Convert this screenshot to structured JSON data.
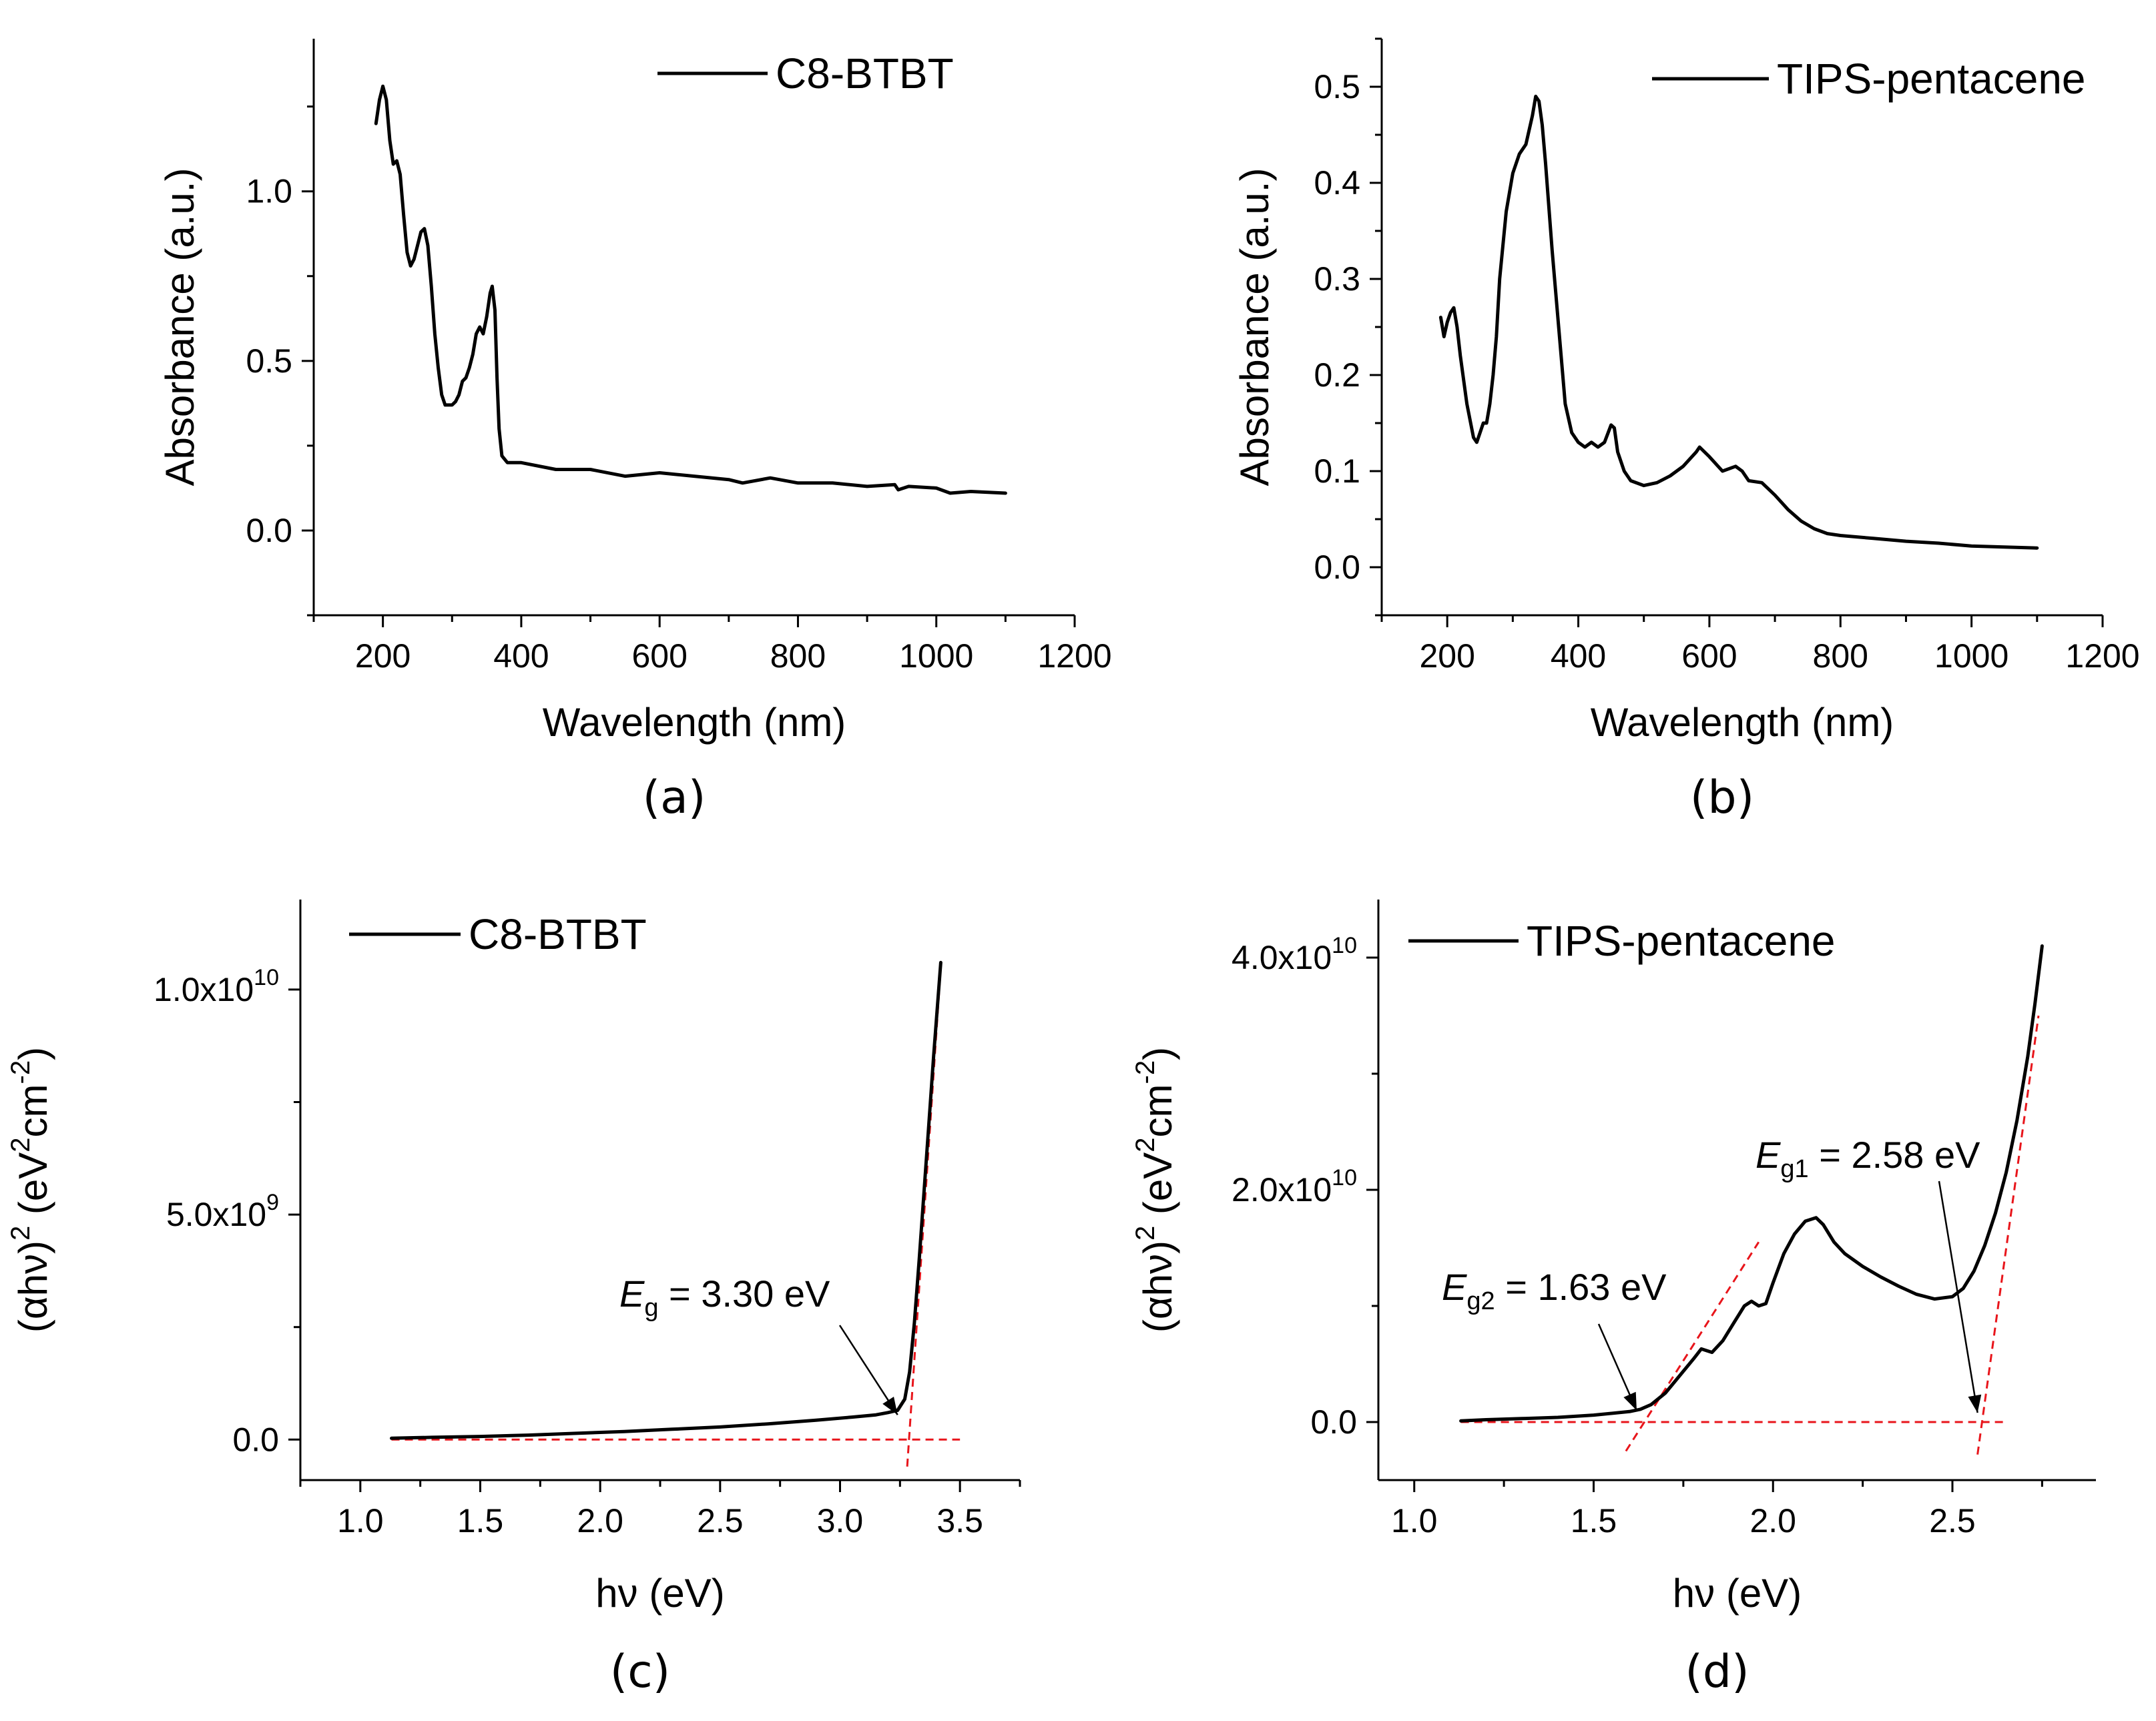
{
  "chart_data": [
    {
      "id": "a",
      "type": "line",
      "caption": "(a)",
      "xlabel": "Wavelength (nm)",
      "ylabel": "Absorbance (a.u.)",
      "xlim": [
        100,
        1200
      ],
      "ylim": [
        -0.25,
        1.45
      ],
      "xticks": [
        200,
        400,
        600,
        800,
        1000,
        1200
      ],
      "xtick_labels": [
        "200",
        "400",
        "600",
        "800",
        "1000",
        "1200"
      ],
      "yticks": [
        0.0,
        0.5,
        1.0
      ],
      "ytick_labels": [
        "0.0",
        "0.5",
        "1.0"
      ],
      "legend": {
        "label": "C8-BTBT",
        "position": "top-right"
      },
      "series": [
        {
          "name": "C8-BTBT",
          "color": "#000000",
          "x": [
            190,
            195,
            200,
            205,
            210,
            215,
            220,
            225,
            230,
            235,
            240,
            245,
            250,
            255,
            260,
            265,
            270,
            275,
            280,
            285,
            290,
            295,
            300,
            305,
            310,
            315,
            320,
            325,
            330,
            335,
            340,
            345,
            350,
            355,
            358,
            362,
            365,
            368,
            372,
            376,
            380,
            400,
            450,
            500,
            550,
            600,
            650,
            700,
            720,
            760,
            800,
            850,
            900,
            940,
            945,
            960,
            1000,
            1020,
            1050,
            1100
          ],
          "y": [
            1.2,
            1.27,
            1.31,
            1.27,
            1.15,
            1.08,
            1.09,
            1.05,
            0.93,
            0.82,
            0.78,
            0.8,
            0.84,
            0.88,
            0.89,
            0.84,
            0.72,
            0.58,
            0.48,
            0.4,
            0.37,
            0.37,
            0.37,
            0.38,
            0.4,
            0.44,
            0.45,
            0.48,
            0.52,
            0.58,
            0.6,
            0.58,
            0.63,
            0.7,
            0.72,
            0.65,
            0.45,
            0.3,
            0.22,
            0.21,
            0.2,
            0.2,
            0.18,
            0.18,
            0.16,
            0.17,
            0.16,
            0.15,
            0.14,
            0.155,
            0.14,
            0.14,
            0.13,
            0.135,
            0.12,
            0.13,
            0.125,
            0.11,
            0.115,
            0.11
          ]
        }
      ]
    },
    {
      "id": "b",
      "type": "line",
      "caption": "(b)",
      "xlabel": "Wavelength (nm)",
      "ylabel": "Absorbance (a.u.)",
      "xlim": [
        100,
        1200
      ],
      "ylim": [
        -0.05,
        0.55
      ],
      "xticks": [
        200,
        400,
        600,
        800,
        1000,
        1200
      ],
      "xtick_labels": [
        "200",
        "400",
        "600",
        "800",
        "1000",
        "1200"
      ],
      "yticks": [
        0.0,
        0.1,
        0.2,
        0.3,
        0.4,
        0.5
      ],
      "ytick_labels": [
        "0.0",
        "0.1",
        "0.2",
        "0.3",
        "0.4",
        "0.5"
      ],
      "legend": {
        "label": "TIPS-pentacene",
        "position": "top-right"
      },
      "series": [
        {
          "name": "TIPS-pentacene",
          "color": "#000000",
          "x": [
            190,
            195,
            200,
            205,
            210,
            215,
            220,
            230,
            240,
            245,
            250,
            255,
            260,
            265,
            270,
            275,
            280,
            290,
            300,
            310,
            320,
            330,
            335,
            340,
            345,
            350,
            360,
            370,
            380,
            390,
            400,
            410,
            420,
            430,
            440,
            450,
            455,
            460,
            470,
            480,
            500,
            520,
            540,
            560,
            580,
            585,
            600,
            620,
            640,
            650,
            660,
            680,
            700,
            720,
            740,
            760,
            780,
            800,
            850,
            900,
            950,
            1000,
            1050,
            1100
          ],
          "y": [
            0.26,
            0.24,
            0.255,
            0.265,
            0.27,
            0.25,
            0.22,
            0.17,
            0.135,
            0.13,
            0.14,
            0.15,
            0.15,
            0.17,
            0.2,
            0.24,
            0.3,
            0.37,
            0.41,
            0.43,
            0.44,
            0.47,
            0.49,
            0.485,
            0.46,
            0.42,
            0.33,
            0.25,
            0.17,
            0.14,
            0.13,
            0.125,
            0.13,
            0.125,
            0.13,
            0.148,
            0.145,
            0.12,
            0.1,
            0.09,
            0.085,
            0.088,
            0.095,
            0.105,
            0.12,
            0.125,
            0.115,
            0.1,
            0.105,
            0.1,
            0.09,
            0.088,
            0.075,
            0.06,
            0.048,
            0.04,
            0.035,
            0.033,
            0.03,
            0.027,
            0.025,
            0.022,
            0.021,
            0.02
          ]
        }
      ]
    },
    {
      "id": "c",
      "type": "line",
      "caption": "(c)",
      "xlabel": "hν (eV)",
      "ylabel": "(αhν)² (eV²cm⁻²)",
      "ylabel_parts": {
        "pre": "(",
        "alpha": "α",
        "mid": "hν)",
        "sup1": "2",
        "unit1": " (eV",
        "sup2": "2",
        "unit2": "cm",
        "sup3": "-2",
        "close": ")"
      },
      "xlim": [
        0.75,
        3.75
      ],
      "ylim": [
        -900000000.0,
        12000000000.0
      ],
      "xticks": [
        1.0,
        1.5,
        2.0,
        2.5,
        3.0,
        3.5
      ],
      "xtick_labels": [
        "1.0",
        "1.5",
        "2.0",
        "2.5",
        "3.0",
        "3.5"
      ],
      "yticks": [
        0.0,
        5000000000.0,
        10000000000.0
      ],
      "ytick_labels": [
        {
          "base": "0.0",
          "exp": ""
        },
        {
          "base": "5.0x10",
          "exp": "9"
        },
        {
          "base": "1.0x10",
          "exp": "10"
        }
      ],
      "legend": {
        "label": "C8-BTBT",
        "position": "top-left"
      },
      "series": [
        {
          "name": "C8-BTBT",
          "color": "#000000",
          "x": [
            1.13,
            1.3,
            1.5,
            1.7,
            1.9,
            2.1,
            2.3,
            2.5,
            2.7,
            2.9,
            3.05,
            3.15,
            3.2,
            3.24,
            3.27,
            3.29,
            3.31,
            3.33,
            3.35,
            3.37,
            3.39,
            3.41,
            3.42
          ],
          "y": [
            30000000.0,
            50000000.0,
            70000000.0,
            100000000.0,
            140000000.0,
            180000000.0,
            230000000.0,
            280000000.0,
            350000000.0,
            430000000.0,
            500000000.0,
            550000000.0,
            600000000.0,
            650000000.0,
            900000000.0,
            1500000000.0,
            2600000000.0,
            4000000000.0,
            5500000000.0,
            7000000000.0,
            8500000000.0,
            9900000000.0,
            10600000000.0
          ]
        }
      ],
      "fit_lines": [
        {
          "x": [
            1.13,
            3.5
          ],
          "y": [
            0.0,
            0.0
          ]
        },
        {
          "x": [
            3.28,
            3.42
          ],
          "y": [
            -600000000.0,
            10500000000.0
          ]
        }
      ],
      "annotations": [
        {
          "symbol": "E",
          "sub": "g",
          "text": " = 3.30 eV",
          "arrow_to": [
            3.24,
            550000000.0
          ]
        }
      ]
    },
    {
      "id": "d",
      "type": "line",
      "caption": "(d)",
      "xlabel": "hν (eV)",
      "ylabel": "(αhν)² (eV²cm⁻²)",
      "ylabel_parts": {
        "pre": "(",
        "alpha": "α",
        "mid": "hν)",
        "sup1": "2",
        "unit1": " (eV",
        "sup2": "2",
        "unit2": "cm",
        "sup3": "-2",
        "close": ")"
      },
      "xlim": [
        0.9,
        2.9
      ],
      "ylim": [
        -5000000000.0,
        45000000000.0
      ],
      "xticks": [
        1.0,
        1.5,
        2.0,
        2.5
      ],
      "xtick_labels": [
        "1.0",
        "1.5",
        "2.0",
        "2.5"
      ],
      "yticks": [
        0.0,
        20000000000.0,
        40000000000.0
      ],
      "ytick_labels": [
        {
          "base": "0.0",
          "exp": ""
        },
        {
          "base": "2.0x10",
          "exp": "10"
        },
        {
          "base": "4.0x10",
          "exp": "10"
        }
      ],
      "legend": {
        "label": "TIPS-pentacene",
        "position": "top-left"
      },
      "series": [
        {
          "name": "TIPS-pentacene",
          "color": "#000000",
          "x": [
            1.13,
            1.2,
            1.3,
            1.4,
            1.5,
            1.6,
            1.63,
            1.66,
            1.7,
            1.74,
            1.78,
            1.8,
            1.83,
            1.86,
            1.89,
            1.92,
            1.94,
            1.96,
            1.98,
            2.0,
            2.03,
            2.06,
            2.09,
            2.12,
            2.14,
            2.17,
            2.2,
            2.25,
            2.3,
            2.35,
            2.4,
            2.45,
            2.5,
            2.53,
            2.56,
            2.59,
            2.62,
            2.65,
            2.68,
            2.71,
            2.73,
            2.75
          ],
          "y": [
            100000000.0,
            200000000.0,
            300000000.0,
            400000000.0,
            600000000.0,
            900000000.0,
            1100000000.0,
            1500000000.0,
            2500000000.0,
            4000000000.0,
            5500000000.0,
            6300000000.0,
            6000000000.0,
            7000000000.0,
            8500000000.0,
            10000000000.0,
            10400000000.0,
            10000000000.0,
            10200000000.0,
            12000000000.0,
            14500000000.0,
            16200000000.0,
            17300000000.0,
            17600000000.0,
            17000000000.0,
            15500000000.0,
            14500000000.0,
            13400000000.0,
            12500000000.0,
            11700000000.0,
            11000000000.0,
            10600000000.0,
            10800000000.0,
            11500000000.0,
            13000000000.0,
            15200000000.0,
            18000000000.0,
            21500000000.0,
            26000000000.0,
            31500000000.0,
            36000000000.0,
            41000000000.0
          ]
        }
      ],
      "fit_lines": [
        {
          "x": [
            1.13,
            2.65
          ],
          "y": [
            0.0,
            0.0
          ]
        },
        {
          "x": [
            1.59,
            1.96
          ],
          "y": [
            -2500000000.0,
            15500000000.0
          ]
        },
        {
          "x": [
            2.57,
            2.74
          ],
          "y": [
            -2800000000.0,
            35000000000.0
          ]
        }
      ],
      "annotations": [
        {
          "symbol": "E",
          "sub": "g2",
          "text": " = 1.63 eV",
          "arrow_to": [
            1.62,
            1000000000.0
          ]
        },
        {
          "symbol": "E",
          "sub": "g1",
          "text": " = 2.58 eV",
          "arrow_to": [
            2.57,
            800000000.0
          ]
        }
      ]
    }
  ]
}
